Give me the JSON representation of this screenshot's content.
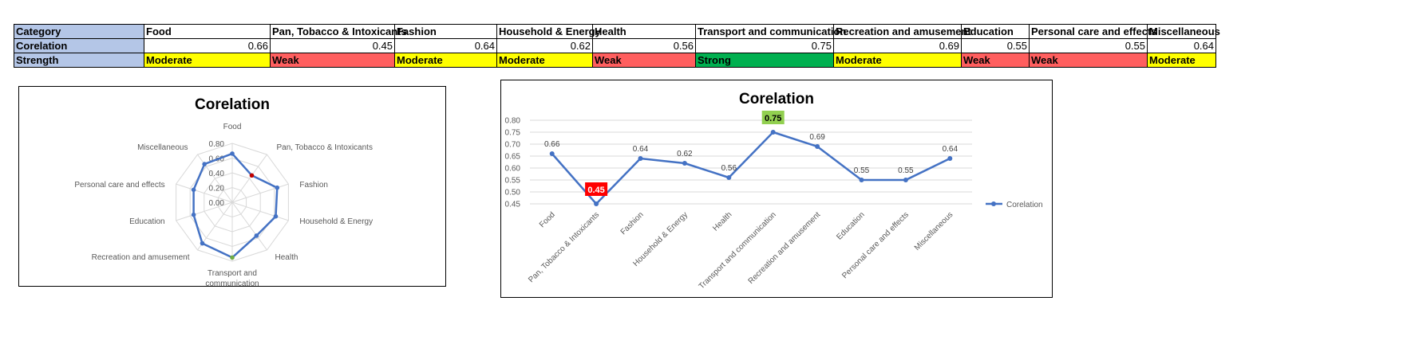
{
  "table": {
    "row_labels": [
      "Category",
      "Corelation",
      "Strength"
    ],
    "categories": [
      "Food",
      "Pan, Tobacco & Intoxicants",
      "Fashion",
      "Household & Energy",
      "Health",
      "Transport and communication",
      "Recreation and amusement",
      "Education",
      "Personal care and effects",
      "Miscellaneous"
    ],
    "correlations": [
      "0.66",
      "0.45",
      "0.64",
      "0.62",
      "0.56",
      "0.75",
      "0.69",
      "0.55",
      "0.55",
      "0.64"
    ],
    "strengths": [
      "Moderate",
      "Weak",
      "Moderate",
      "Moderate",
      "Weak",
      "Strong",
      "Moderate",
      "Weak",
      "Weak",
      "Moderate"
    ],
    "strength_colors": {
      "Moderate": "#ffff00",
      "Weak": "#ff5f5f",
      "Strong": "#00b050"
    }
  },
  "chart_data": [
    {
      "type": "radar",
      "title": "Corelation",
      "categories": [
        "Food",
        "Pan, Tobacco & Intoxicants",
        "Fashion",
        "Household & Energy",
        "Health",
        "Transport and communication",
        "Recreation and amusement",
        "Education",
        "Personal care and effects",
        "Miscellaneous"
      ],
      "values": [
        0.66,
        0.45,
        0.64,
        0.62,
        0.56,
        0.75,
        0.69,
        0.55,
        0.55,
        0.64
      ],
      "ticks": [
        "0.00",
        "0.20",
        "0.40",
        "0.60",
        "0.80"
      ],
      "rlim": [
        0,
        0.8
      ],
      "line_color": "#4472c4",
      "min_marker_color": "#c00000",
      "max_marker_color": "#70ad47"
    },
    {
      "type": "line",
      "title": "Corelation",
      "categories": [
        "Food",
        "Pan, Tobacco & Intoxicants",
        "Fashion",
        "Household & Energy",
        "Health",
        "Transport and communication",
        "Recreation and amusement",
        "Education",
        "Personal care and effects",
        "Miscellaneous"
      ],
      "series": [
        {
          "name": "Corelation",
          "values": [
            0.66,
            0.45,
            0.64,
            0.62,
            0.56,
            0.75,
            0.69,
            0.55,
            0.55,
            0.64
          ]
        }
      ],
      "data_labels": [
        "0.66",
        "0.45",
        "0.64",
        "0.62",
        "0.56",
        "0.75",
        "0.69",
        "0.55",
        "0.55",
        "0.64"
      ],
      "yticks": [
        "0.45",
        "0.50",
        "0.55",
        "0.60",
        "0.65",
        "0.70",
        "0.75",
        "0.80"
      ],
      "ylim": [
        0.45,
        0.8
      ],
      "grid": true,
      "legend": "right",
      "line_color": "#4472c4",
      "min_label_color": "#ff0000",
      "max_label_color": "#92d050"
    }
  ]
}
